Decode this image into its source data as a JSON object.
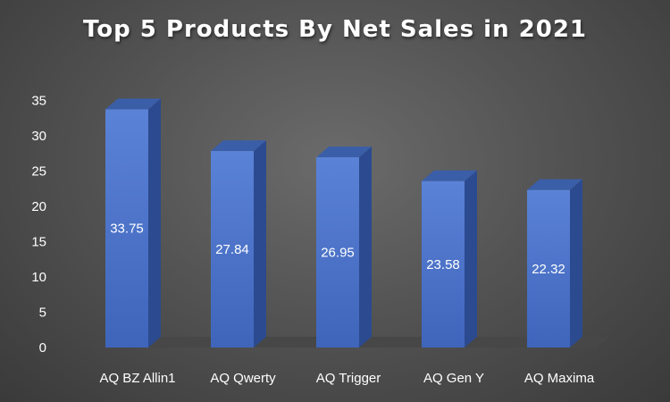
{
  "chart_data": {
    "type": "bar",
    "title": "Top 5 Products By Net Sales in 2021",
    "categories": [
      "AQ BZ Allin1",
      "AQ Qwerty",
      "AQ Trigger",
      "AQ Gen Y",
      "AQ Maxima"
    ],
    "values": [
      33.75,
      27.84,
      26.95,
      23.58,
      22.32
    ],
    "data_labels": [
      "33.75",
      "27.84",
      "26.95",
      "23.58",
      "22.32"
    ],
    "ylim": [
      0,
      35
    ],
    "yticks": [
      0,
      5,
      10,
      15,
      20,
      25,
      30,
      35
    ],
    "xlabel": "",
    "ylabel": "",
    "grid": false,
    "legend": "none",
    "style": "3d-column",
    "colors": {
      "bar_front": "#4a72c8",
      "bar_side": "#2c4a8f",
      "bar_top": "#3b5ea8",
      "floor": "#3a3a3a",
      "text": "#ffffff"
    }
  }
}
